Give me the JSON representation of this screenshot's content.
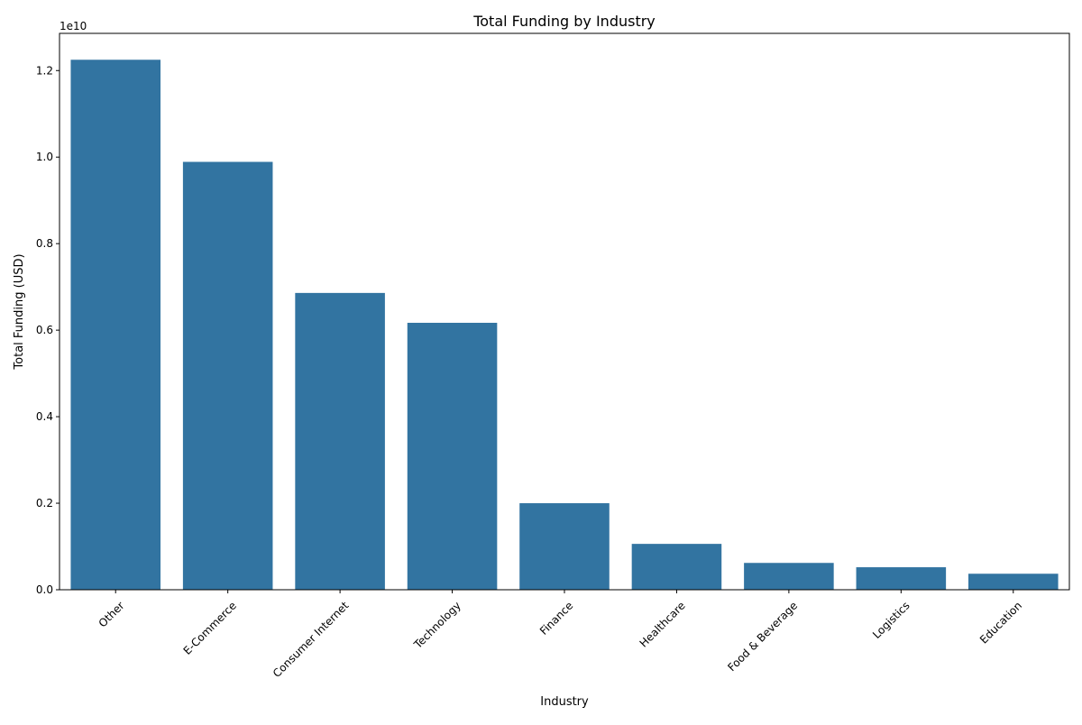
{
  "chart_data": {
    "type": "bar",
    "title": "Total Funding by Industry",
    "xlabel": "Industry",
    "ylabel": "Total Funding (USD)",
    "y_offset_label": "1e10",
    "categories": [
      "Other",
      "E-Commerce",
      "Consumer Internet",
      "Technology",
      "Finance",
      "Healthcare",
      "Food & Beverage",
      "Logistics",
      "Education"
    ],
    "values": [
      12250000000,
      9890000000,
      6860000000,
      6170000000,
      2000000000,
      1060000000,
      620000000,
      520000000,
      370000000
    ],
    "ylim": [
      0,
      12860000000
    ],
    "y_ticks": [
      0,
      2000000000,
      4000000000,
      6000000000,
      8000000000,
      10000000000,
      12000000000
    ],
    "y_tick_labels": [
      "0.0",
      "0.2",
      "0.4",
      "0.6",
      "0.8",
      "1.0",
      "1.2"
    ],
    "x_tick_rotation": 45,
    "grid": false,
    "bar_color": "#3274a1"
  }
}
